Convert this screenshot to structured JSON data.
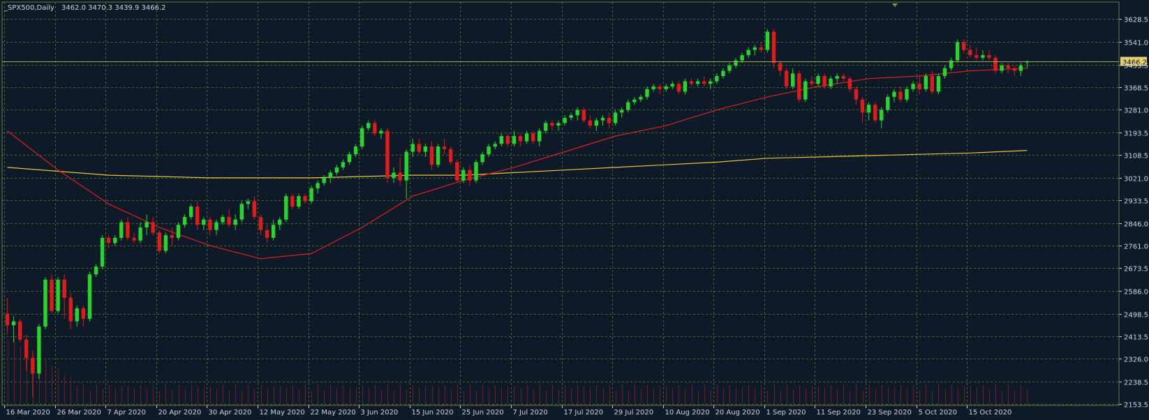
{
  "header": {
    "symbol": "_SPX500,Daily",
    "ohlc": "3462.0 3470.3 3439.9 3466.2"
  },
  "colors": {
    "background": "#0e1a28",
    "grid": "#3f6a2f",
    "axis_text": "#cfd4da",
    "bull": "#27d62c",
    "bear": "#e01b1b",
    "ma_fast": "#e02020",
    "ma_slow": "#e8c43a",
    "volume": "#7a1c1c",
    "price_line": "#a8a64a",
    "price_box": "#e0d070",
    "frame": "#6f7c3e"
  },
  "chart_data": {
    "type": "candlestick",
    "title": "_SPX500,Daily",
    "ylim": [
      2153.5,
      3672
    ],
    "y_ticks": [
      "3628.5",
      "3541.0",
      "3453.5",
      "3368.5",
      "3281.0",
      "3193.5",
      "3108.5",
      "3021.0",
      "2933.5",
      "2846.0",
      "2761.0",
      "2673.5",
      "2586.0",
      "2498.5",
      "2413.5",
      "2326.0",
      "2238.5",
      "2153.5"
    ],
    "x_ticks": [
      "16 Mar 2020",
      "26 Mar 2020",
      "7 Apr 2020",
      "20 Apr 2020",
      "30 Apr 2020",
      "12 May 2020",
      "22 May 2020",
      "3 Jun 2020",
      "15 Jun 2020",
      "25 Jun 2020",
      "7 Jul 2020",
      "17 Jul 2020",
      "29 Jul 2020",
      "10 Aug 2020",
      "20 Aug 2020",
      "1 Sep 2020",
      "11 Sep 2020",
      "23 Sep 2020",
      "5 Oct 2020",
      "15 Oct 2020"
    ],
    "x_tick_index": [
      0,
      8,
      16,
      24,
      32,
      40,
      48,
      56,
      64,
      72,
      80,
      88,
      96,
      104,
      112,
      120,
      128,
      136,
      144,
      152
    ],
    "current_price": "3466.2",
    "candles": [
      [
        2500,
        2560,
        2420,
        2455
      ],
      [
        2455,
        2490,
        2390,
        2470
      ],
      [
        2470,
        2480,
        2390,
        2400
      ],
      [
        2400,
        2420,
        2280,
        2330
      ],
      [
        2330,
        2360,
        2180,
        2270
      ],
      [
        2270,
        2460,
        2250,
        2450
      ],
      [
        2450,
        2640,
        2440,
        2630
      ],
      [
        2630,
        2650,
        2500,
        2510
      ],
      [
        2510,
        2640,
        2500,
        2630
      ],
      [
        2630,
        2650,
        2480,
        2560
      ],
      [
        2560,
        2580,
        2440,
        2470
      ],
      [
        2470,
        2530,
        2450,
        2520
      ],
      [
        2520,
        2530,
        2450,
        2480
      ],
      [
        2480,
        2660,
        2470,
        2650
      ],
      [
        2650,
        2690,
        2640,
        2680
      ],
      [
        2680,
        2800,
        2670,
        2790
      ],
      [
        2790,
        2800,
        2750,
        2770
      ],
      [
        2770,
        2800,
        2760,
        2790
      ],
      [
        2790,
        2860,
        2780,
        2850
      ],
      [
        2850,
        2870,
        2780,
        2790
      ],
      [
        2790,
        2810,
        2770,
        2780
      ],
      [
        2780,
        2850,
        2770,
        2830
      ],
      [
        2830,
        2880,
        2800,
        2850
      ],
      [
        2850,
        2870,
        2800,
        2810
      ],
      [
        2810,
        2820,
        2730,
        2740
      ],
      [
        2740,
        2810,
        2730,
        2800
      ],
      [
        2800,
        2830,
        2760,
        2790
      ],
      [
        2790,
        2850,
        2780,
        2840
      ],
      [
        2840,
        2880,
        2830,
        2870
      ],
      [
        2870,
        2920,
        2860,
        2910
      ],
      [
        2910,
        2930,
        2820,
        2840
      ],
      [
        2840,
        2870,
        2820,
        2860
      ],
      [
        2860,
        2870,
        2800,
        2820
      ],
      [
        2820,
        2860,
        2800,
        2850
      ],
      [
        2850,
        2880,
        2840,
        2870
      ],
      [
        2870,
        2900,
        2830,
        2840
      ],
      [
        2840,
        2880,
        2820,
        2860
      ],
      [
        2860,
        2930,
        2850,
        2920
      ],
      [
        2920,
        2940,
        2900,
        2930
      ],
      [
        2930,
        2950,
        2860,
        2870
      ],
      [
        2870,
        2880,
        2800,
        2820
      ],
      [
        2820,
        2840,
        2770,
        2790
      ],
      [
        2790,
        2860,
        2780,
        2840
      ],
      [
        2840,
        2870,
        2820,
        2860
      ],
      [
        2860,
        2960,
        2850,
        2950
      ],
      [
        2950,
        2960,
        2900,
        2910
      ],
      [
        2910,
        2960,
        2900,
        2950
      ],
      [
        2950,
        2960,
        2920,
        2930
      ],
      [
        2930,
        2990,
        2920,
        2980
      ],
      [
        2980,
        3010,
        2960,
        3000
      ],
      [
        3000,
        3030,
        2990,
        3020
      ],
      [
        3020,
        3050,
        3000,
        3040
      ],
      [
        3040,
        3070,
        3030,
        3060
      ],
      [
        3060,
        3090,
        3050,
        3080
      ],
      [
        3080,
        3120,
        3070,
        3110
      ],
      [
        3110,
        3150,
        3100,
        3140
      ],
      [
        3140,
        3220,
        3130,
        3210
      ],
      [
        3210,
        3240,
        3200,
        3230
      ],
      [
        3230,
        3240,
        3180,
        3190
      ],
      [
        3190,
        3210,
        3170,
        3200
      ],
      [
        3200,
        3210,
        3000,
        3020
      ],
      [
        3020,
        3060,
        3000,
        3040
      ],
      [
        3040,
        3100,
        2990,
        3010
      ],
      [
        3010,
        3130,
        2940,
        3120
      ],
      [
        3120,
        3170,
        3100,
        3150
      ],
      [
        3150,
        3170,
        3110,
        3120
      ],
      [
        3120,
        3150,
        3100,
        3140
      ],
      [
        3140,
        3160,
        3050,
        3070
      ],
      [
        3070,
        3150,
        3060,
        3140
      ],
      [
        3140,
        3170,
        3110,
        3130
      ],
      [
        3130,
        3140,
        3070,
        3080
      ],
      [
        3080,
        3090,
        3000,
        3010
      ],
      [
        3010,
        3060,
        3000,
        3050
      ],
      [
        3050,
        3070,
        2990,
        3010
      ],
      [
        3010,
        3090,
        3000,
        3080
      ],
      [
        3080,
        3120,
        3070,
        3110
      ],
      [
        3110,
        3150,
        3100,
        3140
      ],
      [
        3140,
        3160,
        3130,
        3150
      ],
      [
        3150,
        3190,
        3140,
        3180
      ],
      [
        3180,
        3190,
        3140,
        3150
      ],
      [
        3150,
        3200,
        3140,
        3180
      ],
      [
        3180,
        3190,
        3140,
        3160
      ],
      [
        3160,
        3200,
        3150,
        3190
      ],
      [
        3190,
        3200,
        3150,
        3160
      ],
      [
        3160,
        3210,
        3140,
        3200
      ],
      [
        3200,
        3240,
        3190,
        3230
      ],
      [
        3230,
        3240,
        3200,
        3220
      ],
      [
        3220,
        3240,
        3200,
        3230
      ],
      [
        3230,
        3260,
        3220,
        3250
      ],
      [
        3250,
        3270,
        3240,
        3260
      ],
      [
        3260,
        3290,
        3240,
        3280
      ],
      [
        3280,
        3290,
        3230,
        3240
      ],
      [
        3240,
        3260,
        3210,
        3220
      ],
      [
        3220,
        3250,
        3200,
        3240
      ],
      [
        3240,
        3260,
        3220,
        3250
      ],
      [
        3250,
        3270,
        3210,
        3230
      ],
      [
        3230,
        3280,
        3220,
        3270
      ],
      [
        3270,
        3290,
        3250,
        3280
      ],
      [
        3280,
        3320,
        3270,
        3310
      ],
      [
        3310,
        3330,
        3300,
        3320
      ],
      [
        3320,
        3340,
        3310,
        3330
      ],
      [
        3330,
        3370,
        3320,
        3360
      ],
      [
        3360,
        3380,
        3350,
        3370
      ],
      [
        3370,
        3380,
        3340,
        3360
      ],
      [
        3360,
        3380,
        3350,
        3370
      ],
      [
        3370,
        3390,
        3360,
        3380
      ],
      [
        3380,
        3390,
        3340,
        3350
      ],
      [
        3350,
        3400,
        3340,
        3390
      ],
      [
        3390,
        3400,
        3370,
        3380
      ],
      [
        3380,
        3400,
        3370,
        3390
      ],
      [
        3390,
        3410,
        3370,
        3380
      ],
      [
        3380,
        3400,
        3360,
        3390
      ],
      [
        3390,
        3420,
        3380,
        3410
      ],
      [
        3410,
        3440,
        3400,
        3430
      ],
      [
        3430,
        3460,
        3420,
        3450
      ],
      [
        3450,
        3480,
        3440,
        3470
      ],
      [
        3470,
        3500,
        3460,
        3490
      ],
      [
        3490,
        3520,
        3480,
        3510
      ],
      [
        3510,
        3530,
        3490,
        3520
      ],
      [
        3520,
        3540,
        3500,
        3510
      ],
      [
        3510,
        3590,
        3500,
        3580
      ],
      [
        3580,
        3590,
        3440,
        3460
      ],
      [
        3460,
        3470,
        3410,
        3430
      ],
      [
        3430,
        3440,
        3360,
        3370
      ],
      [
        3370,
        3440,
        3360,
        3420
      ],
      [
        3420,
        3430,
        3310,
        3320
      ],
      [
        3320,
        3400,
        3310,
        3390
      ],
      [
        3390,
        3410,
        3370,
        3380
      ],
      [
        3380,
        3420,
        3370,
        3410
      ],
      [
        3410,
        3420,
        3360,
        3370
      ],
      [
        3370,
        3410,
        3360,
        3400
      ],
      [
        3400,
        3420,
        3380,
        3410
      ],
      [
        3410,
        3420,
        3390,
        3400
      ],
      [
        3400,
        3410,
        3350,
        3360
      ],
      [
        3360,
        3370,
        3300,
        3320
      ],
      [
        3320,
        3330,
        3230,
        3270
      ],
      [
        3270,
        3310,
        3240,
        3300
      ],
      [
        3300,
        3310,
        3230,
        3240
      ],
      [
        3240,
        3290,
        3210,
        3280
      ],
      [
        3280,
        3340,
        3270,
        3330
      ],
      [
        3330,
        3360,
        3310,
        3350
      ],
      [
        3350,
        3370,
        3310,
        3320
      ],
      [
        3320,
        3370,
        3310,
        3360
      ],
      [
        3360,
        3390,
        3350,
        3380
      ],
      [
        3380,
        3410,
        3340,
        3360
      ],
      [
        3360,
        3420,
        3350,
        3410
      ],
      [
        3410,
        3430,
        3340,
        3350
      ],
      [
        3350,
        3420,
        3340,
        3410
      ],
      [
        3410,
        3450,
        3400,
        3440
      ],
      [
        3440,
        3480,
        3430,
        3470
      ],
      [
        3470,
        3550,
        3460,
        3540
      ],
      [
        3540,
        3550,
        3500,
        3510
      ],
      [
        3510,
        3530,
        3480,
        3490
      ],
      [
        3490,
        3520,
        3470,
        3480
      ],
      [
        3480,
        3510,
        3470,
        3490
      ],
      [
        3490,
        3510,
        3470,
        3480
      ],
      [
        3480,
        3490,
        3420,
        3430
      ],
      [
        3430,
        3460,
        3420,
        3450
      ],
      [
        3450,
        3460,
        3420,
        3440
      ],
      [
        3440,
        3450,
        3410,
        3430
      ],
      [
        3430,
        3460,
        3410,
        3450
      ],
      [
        3462,
        3470.3,
        3439.9,
        3466.2
      ]
    ],
    "ma_fast": [
      [
        0,
        3200
      ],
      [
        8,
        3050
      ],
      [
        16,
        2920
      ],
      [
        24,
        2830
      ],
      [
        32,
        2760
      ],
      [
        40,
        2710
      ],
      [
        48,
        2730
      ],
      [
        56,
        2830
      ],
      [
        64,
        2950
      ],
      [
        72,
        3010
      ],
      [
        80,
        3060
      ],
      [
        88,
        3120
      ],
      [
        96,
        3180
      ],
      [
        104,
        3220
      ],
      [
        112,
        3280
      ],
      [
        120,
        3330
      ],
      [
        128,
        3370
      ],
      [
        136,
        3400
      ],
      [
        144,
        3410
      ],
      [
        152,
        3430
      ],
      [
        161,
        3440
      ]
    ],
    "ma_slow": [
      [
        0,
        3060
      ],
      [
        8,
        3045
      ],
      [
        16,
        3030
      ],
      [
        24,
        3025
      ],
      [
        32,
        3020
      ],
      [
        40,
        3020
      ],
      [
        48,
        3020
      ],
      [
        56,
        3025
      ],
      [
        64,
        3030
      ],
      [
        72,
        3030
      ],
      [
        80,
        3040
      ],
      [
        88,
        3050
      ],
      [
        96,
        3060
      ],
      [
        104,
        3070
      ],
      [
        112,
        3080
      ],
      [
        120,
        3095
      ],
      [
        128,
        3100
      ],
      [
        136,
        3105
      ],
      [
        144,
        3110
      ],
      [
        152,
        3115
      ],
      [
        161,
        3125
      ]
    ]
  }
}
